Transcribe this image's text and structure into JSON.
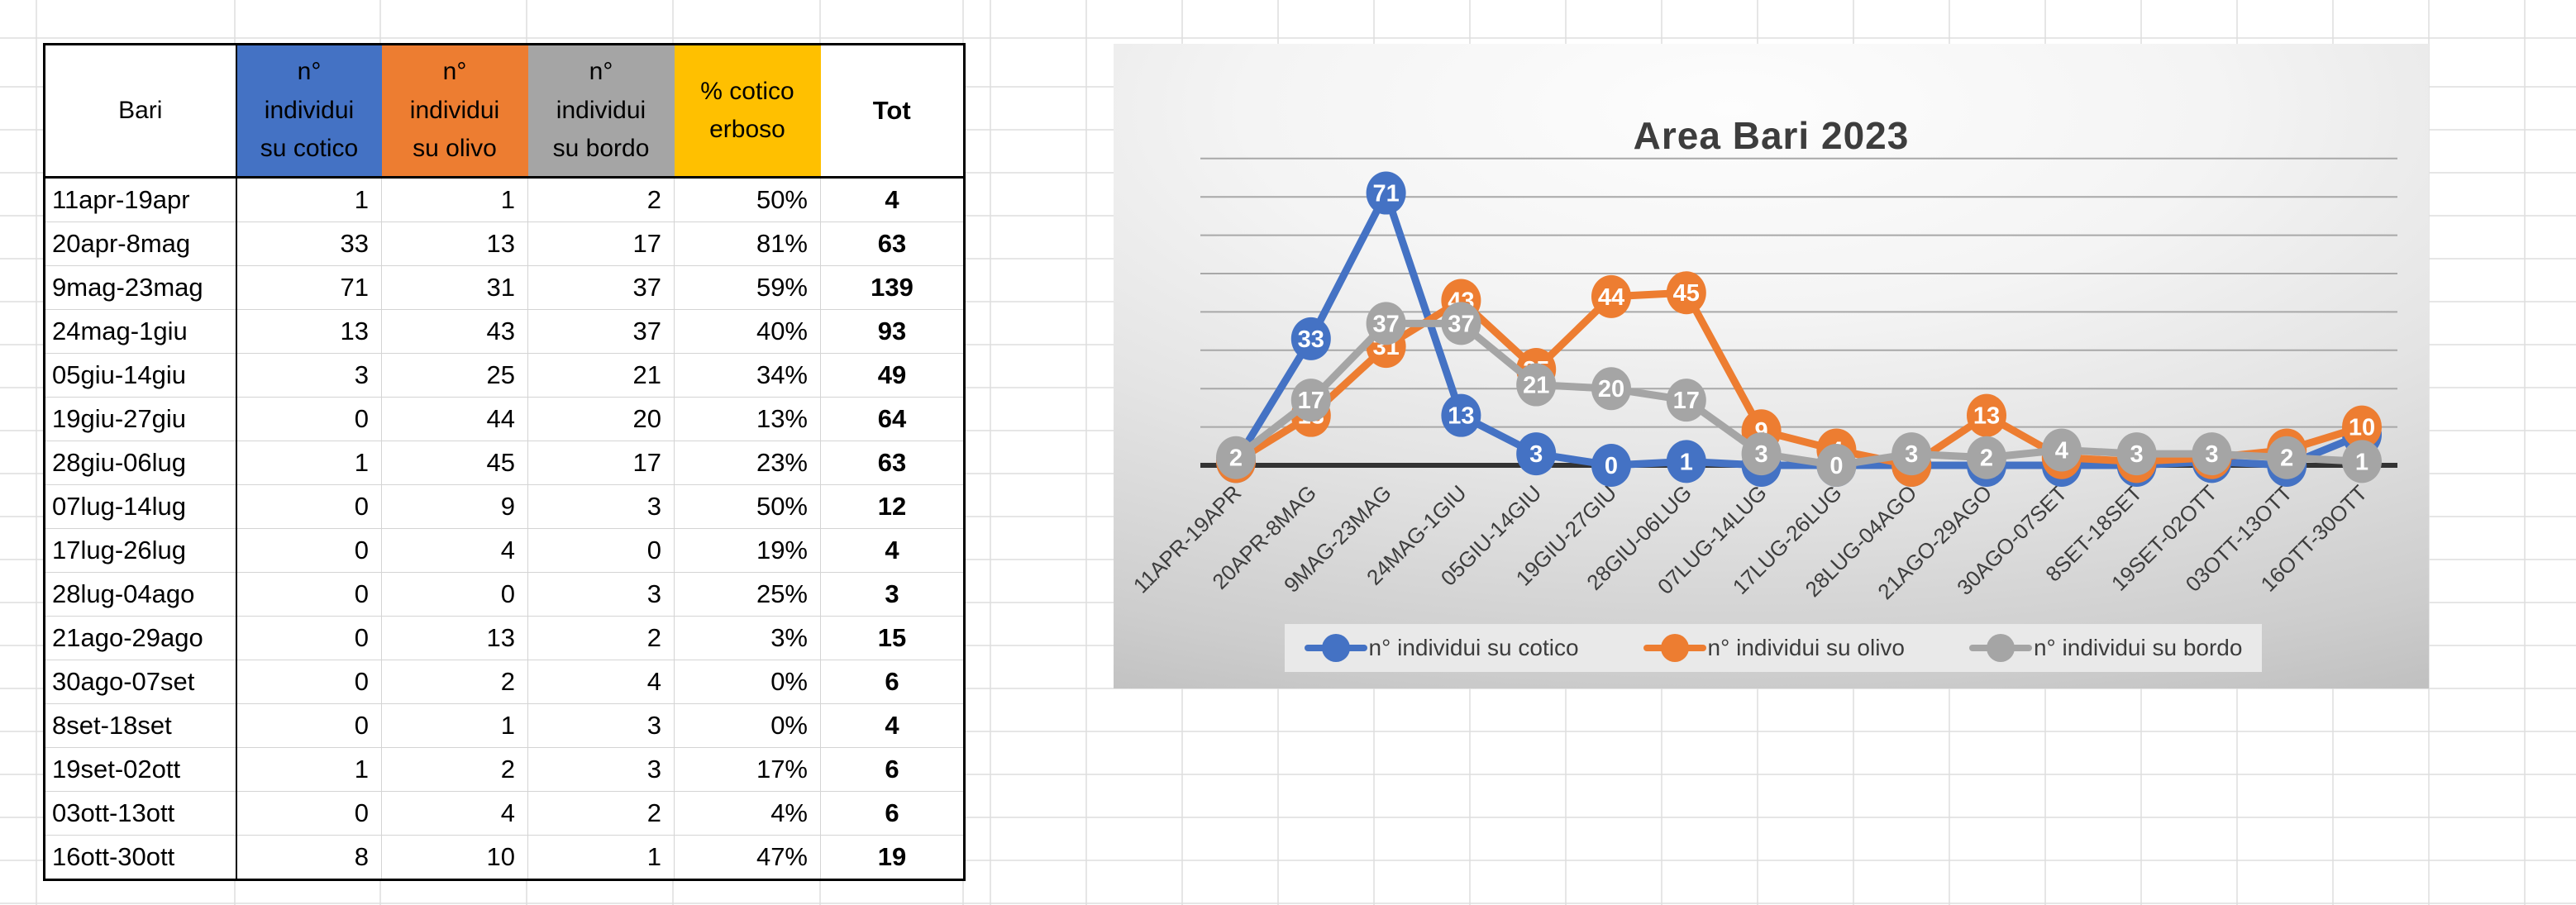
{
  "table": {
    "columns": [
      {
        "label": "Bari",
        "bg": "#FFFFFF"
      },
      {
        "label": "n°\nindividui\nsu cotico",
        "bg": "#4472C4"
      },
      {
        "label": "n°\nindividui\nsu olivo",
        "bg": "#ED7D31"
      },
      {
        "label": "n°\nindividui\nsu bordo",
        "bg": "#A5A5A5"
      },
      {
        "label": "% cotico\nerboso",
        "bg": "#FFC000"
      },
      {
        "label": "Tot",
        "bg": "#FFFFFF"
      }
    ],
    "rows": [
      [
        "11apr-19apr",
        1,
        1,
        2,
        "50%",
        4
      ],
      [
        "20apr-8mag",
        33,
        13,
        17,
        "81%",
        63
      ],
      [
        "9mag-23mag",
        71,
        31,
        37,
        "59%",
        139
      ],
      [
        "24mag-1giu",
        13,
        43,
        37,
        "40%",
        93
      ],
      [
        "05giu-14giu",
        3,
        25,
        21,
        "34%",
        49
      ],
      [
        "19giu-27giu",
        0,
        44,
        20,
        "13%",
        64
      ],
      [
        "28giu-06lug",
        1,
        45,
        17,
        "23%",
        63
      ],
      [
        "07lug-14lug",
        0,
        9,
        3,
        "50%",
        12
      ],
      [
        "17lug-26lug",
        0,
        4,
        0,
        "19%",
        4
      ],
      [
        "28lug-04ago",
        0,
        0,
        3,
        "25%",
        3
      ],
      [
        "21ago-29ago",
        0,
        13,
        2,
        "3%",
        15
      ],
      [
        "30ago-07set",
        0,
        2,
        4,
        "0%",
        6
      ],
      [
        "8set-18set",
        0,
        1,
        3,
        "0%",
        4
      ],
      [
        "19set-02ott",
        1,
        2,
        3,
        "17%",
        6
      ],
      [
        "03ott-13ott",
        0,
        4,
        2,
        "4%",
        6
      ],
      [
        "16ott-30ott",
        8,
        10,
        1,
        "47%",
        19
      ]
    ]
  },
  "chart_data": {
    "type": "line",
    "title": "Area Bari 2023",
    "categories": [
      "11APR-19APR",
      "20APR-8MAG",
      "9MAG-23MAG",
      "24MAG-1GIU",
      "05GIU-14GIU",
      "19GIU-27GIU",
      "28GIU-06LUG",
      "07LUG-14LUG",
      "17LUG-26LUG",
      "28LUG-04AGO",
      "21AGO-29AGO",
      "30AGO-07SET",
      "8SET-18SET",
      "19SET-02OTT",
      "03OTT-13OTT",
      "16OTT-30OTT"
    ],
    "series": [
      {
        "name": "n° individui su cotico",
        "color": "#4472C4",
        "values": [
          1,
          33,
          71,
          13,
          3,
          0,
          1,
          0,
          0,
          0,
          0,
          0,
          0,
          1,
          0,
          8
        ]
      },
      {
        "name": "n° individui su olivo",
        "color": "#ED7D31",
        "values": [
          1,
          13,
          31,
          43,
          25,
          44,
          45,
          9,
          4,
          0,
          13,
          2,
          1,
          2,
          4,
          10
        ]
      },
      {
        "name": "n° individui su bordo",
        "color": "#A5A5A5",
        "values": [
          2,
          17,
          37,
          37,
          21,
          20,
          17,
          3,
          0,
          3,
          2,
          4,
          3,
          3,
          2,
          1
        ]
      }
    ],
    "ylim": [
      0,
      80
    ],
    "grid": true,
    "legend_position": "bottom",
    "data_labels": "center",
    "axis_color": "#333333",
    "gridline_color": "#a8a8a8"
  }
}
